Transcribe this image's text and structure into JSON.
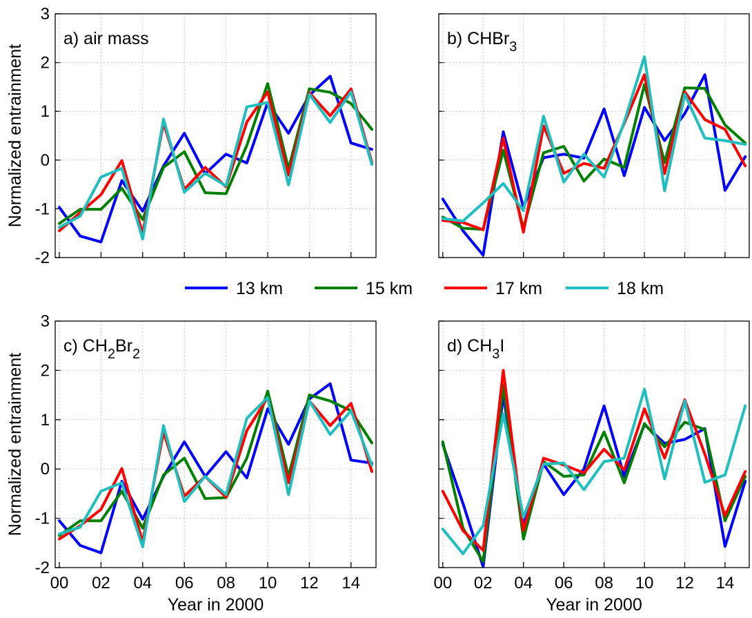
{
  "colors": {
    "13 km": "#0000ff",
    "15 km": "#008000",
    "17 km": "#ff0000",
    "18 km": "#1fbfbf"
  },
  "legend": {
    "entries": [
      "13 km",
      "15 km",
      "17 km",
      "18 km"
    ]
  },
  "chart_data": [
    {
      "type": "line",
      "label": "a) air mass",
      "label_parts": [
        {
          "text": "a) air mass",
          "script": "normal"
        }
      ],
      "xlabel": "",
      "ylabel": "Normalized entrainment",
      "x": [
        0,
        1,
        2,
        3,
        4,
        5,
        6,
        7,
        8,
        9,
        10,
        11,
        12,
        13,
        14,
        15
      ],
      "xlim": [
        -0.2,
        15.2
      ],
      "ylim": [
        -2,
        3
      ],
      "xticks": [
        "00",
        "02",
        "04",
        "06",
        "08",
        "10",
        "12",
        "14"
      ],
      "yticks": [
        "-2",
        "-1",
        "0",
        "1",
        "2",
        "3"
      ],
      "show_xticklabels": false,
      "show_yticklabels": true,
      "grid": true,
      "series": [
        {
          "name": "13 km",
          "values": [
            -0.97,
            -1.56,
            -1.68,
            -0.42,
            -1.05,
            -0.12,
            0.55,
            -0.28,
            0.12,
            -0.06,
            1.18,
            0.55,
            1.33,
            1.72,
            0.35,
            0.22
          ]
        },
        {
          "name": "15 km",
          "values": [
            -1.3,
            -1.01,
            -1.01,
            -0.58,
            -1.22,
            -0.15,
            0.17,
            -0.67,
            -0.69,
            0.3,
            1.57,
            -0.18,
            1.46,
            1.39,
            1.16,
            0.63
          ]
        },
        {
          "name": "17 km",
          "values": [
            -1.45,
            -1.08,
            -0.71,
            -0.01,
            -1.51,
            0.76,
            -0.6,
            -0.15,
            -0.55,
            0.78,
            1.4,
            -0.31,
            1.38,
            0.91,
            1.46,
            -0.05
          ]
        },
        {
          "name": "18 km",
          "values": [
            -1.38,
            -1.15,
            -0.35,
            -0.17,
            -1.62,
            0.84,
            -0.66,
            -0.27,
            -0.53,
            1.09,
            1.18,
            -0.51,
            1.35,
            0.77,
            1.4,
            -0.09
          ]
        }
      ]
    },
    {
      "type": "line",
      "label": "b) CHBr3",
      "label_parts": [
        {
          "text": "b) CHBr",
          "script": "normal"
        },
        {
          "text": "3",
          "script": "sub"
        }
      ],
      "xlabel": "",
      "ylabel": "",
      "x": [
        0,
        1,
        2,
        3,
        4,
        5,
        6,
        7,
        8,
        9,
        10,
        11,
        12,
        13,
        14,
        15
      ],
      "xlim": [
        -0.2,
        15.2
      ],
      "ylim": [
        -2,
        3
      ],
      "xticks": [
        "00",
        "02",
        "04",
        "06",
        "08",
        "10",
        "12",
        "14"
      ],
      "yticks": [
        "-2",
        "-1",
        "0",
        "1",
        "2",
        "3"
      ],
      "show_xticklabels": false,
      "show_yticklabels": false,
      "grid": true,
      "series": [
        {
          "name": "13 km",
          "values": [
            -0.8,
            -1.45,
            -1.95,
            0.58,
            -0.97,
            0.05,
            0.12,
            0.04,
            1.05,
            -0.32,
            1.08,
            0.4,
            0.95,
            1.75,
            -0.62,
            0.07
          ]
        },
        {
          "name": "15 km",
          "values": [
            -1.17,
            -1.4,
            -1.42,
            0.2,
            -1.4,
            0.15,
            0.28,
            -0.43,
            0.02,
            -0.15,
            1.55,
            -0.05,
            1.48,
            1.47,
            0.72,
            0.35
          ]
        },
        {
          "name": "17 km",
          "values": [
            -1.24,
            -1.28,
            -1.43,
            0.45,
            -1.48,
            0.7,
            -0.27,
            -0.07,
            -0.17,
            0.75,
            1.75,
            -0.28,
            1.4,
            0.83,
            0.63,
            -0.12
          ]
        },
        {
          "name": "18 km",
          "values": [
            -1.2,
            -1.25,
            -0.88,
            -0.48,
            -1.04,
            0.9,
            -0.45,
            0.12,
            -0.35,
            0.78,
            2.12,
            -0.63,
            1.35,
            0.45,
            0.4,
            0.32
          ]
        }
      ]
    },
    {
      "type": "line",
      "label": "c) CH2Br2",
      "label_parts": [
        {
          "text": "c) CH",
          "script": "normal"
        },
        {
          "text": "2",
          "script": "sub"
        },
        {
          "text": "Br",
          "script": "normal"
        },
        {
          "text": "2",
          "script": "sub"
        }
      ],
      "xlabel": "Year in 2000",
      "ylabel": "Normalized entrainment",
      "x": [
        0,
        1,
        2,
        3,
        4,
        5,
        6,
        7,
        8,
        9,
        10,
        11,
        12,
        13,
        14,
        15
      ],
      "xlim": [
        -0.2,
        15.2
      ],
      "ylim": [
        -2,
        3
      ],
      "xticks": [
        "00",
        "02",
        "04",
        "06",
        "08",
        "10",
        "12",
        "14"
      ],
      "yticks": [
        "-2",
        "-1",
        "0",
        "1",
        "2",
        "3"
      ],
      "show_xticklabels": true,
      "show_yticklabels": true,
      "grid": true,
      "series": [
        {
          "name": "13 km",
          "values": [
            -1.05,
            -1.55,
            -1.7,
            -0.25,
            -1.02,
            -0.15,
            0.55,
            -0.15,
            0.35,
            -0.18,
            1.22,
            0.5,
            1.42,
            1.73,
            0.18,
            0.12
          ]
        },
        {
          "name": "15 km",
          "values": [
            -1.35,
            -1.05,
            -1.05,
            -0.45,
            -1.2,
            -0.12,
            0.22,
            -0.6,
            -0.58,
            0.22,
            1.58,
            -0.15,
            1.5,
            1.38,
            1.18,
            0.53
          ]
        },
        {
          "name": "17 km",
          "values": [
            -1.42,
            -1.15,
            -0.82,
            0.01,
            -1.48,
            0.75,
            -0.55,
            -0.15,
            -0.57,
            0.78,
            1.45,
            -0.28,
            1.38,
            0.88,
            1.33,
            -0.05
          ]
        },
        {
          "name": "18 km",
          "values": [
            -1.32,
            -1.18,
            -0.45,
            -0.28,
            -1.58,
            0.88,
            -0.66,
            -0.15,
            -0.52,
            1.03,
            1.45,
            -0.52,
            1.38,
            0.7,
            1.18,
            0.08
          ]
        }
      ]
    },
    {
      "type": "line",
      "label": "d) CH3I",
      "label_parts": [
        {
          "text": "d) CH",
          "script": "normal"
        },
        {
          "text": "3",
          "script": "sub"
        },
        {
          "text": "I",
          "script": "normal"
        }
      ],
      "xlabel": "Year in 2000",
      "ylabel": "",
      "x": [
        0,
        1,
        2,
        3,
        4,
        5,
        6,
        7,
        8,
        9,
        10,
        11,
        12,
        13,
        14,
        15
      ],
      "xlim": [
        -0.2,
        15.2
      ],
      "ylim": [
        -2,
        3
      ],
      "xticks": [
        "00",
        "02",
        "04",
        "06",
        "08",
        "10",
        "12",
        "14"
      ],
      "yticks": [
        "-2",
        "-1",
        "0",
        "1",
        "2",
        "3"
      ],
      "show_xticklabels": true,
      "show_yticklabels": false,
      "grid": true,
      "series": [
        {
          "name": "13 km",
          "values": [
            0.5,
            -0.7,
            -1.98,
            1.5,
            -1.1,
            0.1,
            -0.52,
            0.0,
            1.28,
            -0.15,
            0.9,
            0.52,
            0.6,
            0.82,
            -1.57,
            -0.25
          ]
        },
        {
          "name": "15 km",
          "values": [
            0.55,
            -1.2,
            -1.88,
            1.7,
            -1.42,
            0.15,
            -0.15,
            -0.12,
            0.75,
            -0.28,
            0.92,
            0.45,
            0.95,
            0.8,
            -1.05,
            -0.15
          ]
        },
        {
          "name": "17 km",
          "values": [
            -0.45,
            -1.25,
            -1.65,
            2.0,
            -1.25,
            0.22,
            0.08,
            -0.08,
            0.4,
            -0.02,
            1.22,
            0.22,
            1.4,
            0.3,
            -0.95,
            -0.05
          ]
        },
        {
          "name": "18 km",
          "values": [
            -1.22,
            -1.72,
            -1.15,
            1.12,
            -0.98,
            0.1,
            0.12,
            -0.42,
            0.15,
            0.22,
            1.62,
            -0.2,
            1.38,
            -0.27,
            -0.12,
            1.28
          ]
        }
      ]
    }
  ]
}
